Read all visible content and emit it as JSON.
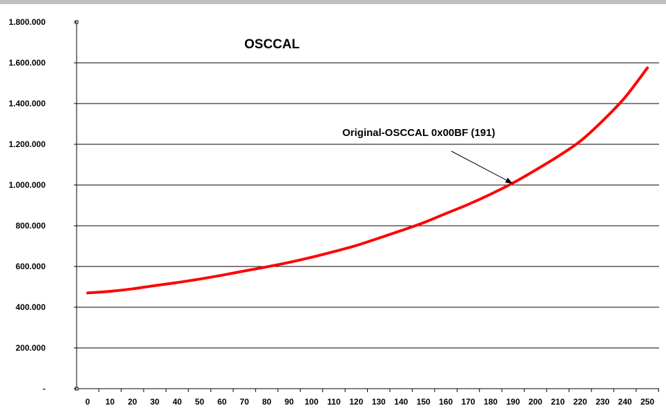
{
  "chart_data": {
    "type": "line",
    "title": "OSCCAL",
    "xlabel": "",
    "ylabel": "",
    "x_tick_labels": [
      "0",
      "10",
      "20",
      "30",
      "40",
      "50",
      "60",
      "70",
      "80",
      "90",
      "100",
      "110",
      "120",
      "130",
      "140",
      "150",
      "160",
      "170",
      "180",
      "190",
      "200",
      "210",
      "220",
      "230",
      "240",
      "250"
    ],
    "y_tick_labels": [
      "-",
      "200.000",
      "400.000",
      "600.000",
      "800.000",
      "1.000.000",
      "1.200.000",
      "1.400.000",
      "1.600.000",
      "1.800.000"
    ],
    "ylim": [
      0,
      1800000
    ],
    "xlim": [
      0,
      255
    ],
    "grid": "horizontal",
    "legend": "none",
    "series": [
      {
        "color": "#ff0000",
        "x": [
          0,
          10,
          20,
          30,
          40,
          50,
          60,
          70,
          80,
          90,
          100,
          110,
          120,
          130,
          140,
          150,
          160,
          170,
          180,
          190,
          200,
          210,
          220,
          230,
          240,
          250
        ],
        "values": [
          470000,
          478000,
          490000,
          506000,
          521000,
          538000,
          557000,
          578000,
          598000,
          620000,
          645000,
          673000,
          703000,
          739000,
          776000,
          815000,
          860000,
          905000,
          955000,
          1010000,
          1073000,
          1140000,
          1215000,
          1315000,
          1430000,
          1575000
        ]
      }
    ],
    "annotations": [
      {
        "text": "Original-OSCCAL 0x00BF (191)",
        "x": 191,
        "y": 998000
      }
    ]
  }
}
